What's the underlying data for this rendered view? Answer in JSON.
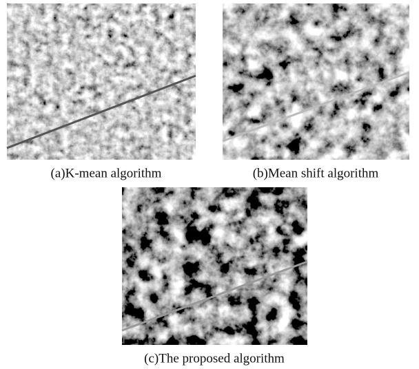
{
  "panels": [
    {
      "caption": "(a)K-mean algorithm"
    },
    {
      "caption": "(b)Mean shift algorithm"
    },
    {
      "caption": "(c)The proposed algorithm"
    }
  ]
}
